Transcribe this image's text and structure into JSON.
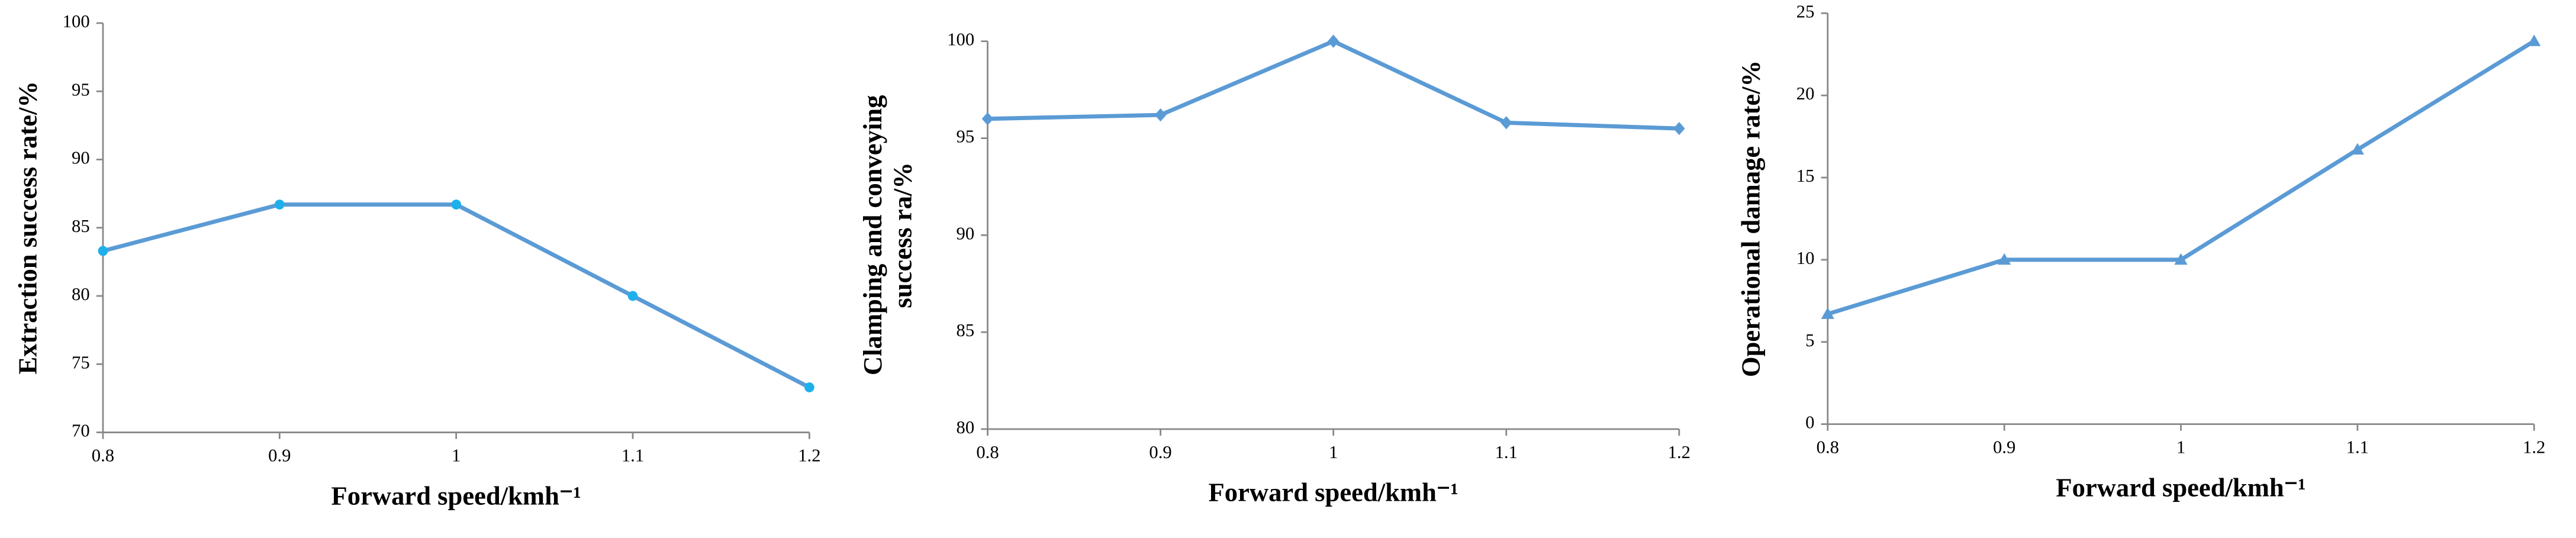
{
  "chart_data": [
    {
      "type": "line",
      "xlabel": "Forward speed/kmh⁻¹",
      "ylabel": [
        "Extraction success rate/%"
      ],
      "x": [
        0.8,
        0.9,
        1,
        1.1,
        1.2
      ],
      "values": [
        83.3,
        86.7,
        86.7,
        80,
        73.3
      ],
      "color": "#5b9bd5",
      "marker": "circle",
      "marker_color": "#1fb0ec",
      "xlim": [
        0.8,
        1.2
      ],
      "xticks": [
        0.8,
        0.9,
        1,
        1.1,
        1.2
      ],
      "ylim": [
        70,
        100
      ],
      "yticks": [
        70,
        75,
        80,
        85,
        90,
        95,
        100
      ],
      "grid": false
    },
    {
      "type": "line",
      "xlabel": "Forward speed/kmh⁻¹",
      "ylabel": [
        "Clamping and conveying",
        "success ra/%"
      ],
      "x": [
        0.8,
        0.9,
        1,
        1.1,
        1.2
      ],
      "values": [
        96,
        96.2,
        100,
        95.8,
        95.5
      ],
      "color": "#5b9bd5",
      "marker": "diamond",
      "marker_color": "#5b9bd5",
      "xlim": [
        0.8,
        1.2
      ],
      "xticks": [
        0.8,
        0.9,
        1,
        1.1,
        1.2
      ],
      "ylim": [
        80,
        100
      ],
      "yticks": [
        80,
        85,
        90,
        95,
        100
      ],
      "grid": false
    },
    {
      "type": "line",
      "xlabel": "Forward speed/kmh⁻¹",
      "ylabel": [
        "Operational damage rate/%"
      ],
      "x": [
        0.8,
        0.9,
        1,
        1.1,
        1.2
      ],
      "values": [
        6.7,
        10,
        10,
        16.7,
        23.3
      ],
      "color": "#5b9bd5",
      "marker": "triangle",
      "marker_color": "#5b9bd5",
      "xlim": [
        0.8,
        1.2
      ],
      "xticks": [
        0.8,
        0.9,
        1,
        1.1,
        1.2
      ],
      "ylim": [
        0,
        25
      ],
      "yticks": [
        0,
        5,
        10,
        15,
        20,
        25
      ],
      "grid": false
    }
  ]
}
